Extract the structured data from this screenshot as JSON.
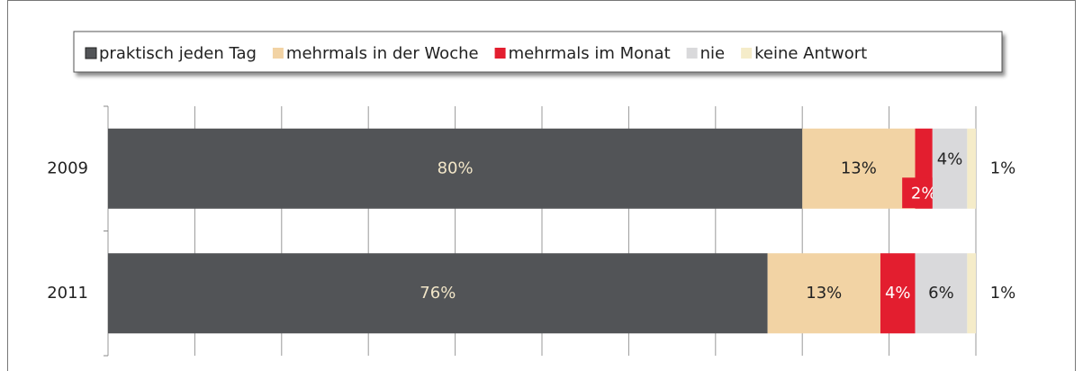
{
  "chart_data": {
    "type": "stacked-bar-horizontal",
    "categories": [
      "2009",
      "2011"
    ],
    "series": [
      {
        "name": "praktisch jeden Tag",
        "color": "#525457",
        "values": [
          80,
          76
        ],
        "value_labels": [
          "80%",
          "76%"
        ]
      },
      {
        "name": "mehrmals in der Woche",
        "color": "#f2d3a4",
        "values": [
          13,
          13
        ],
        "value_labels": [
          "13%",
          "13%"
        ]
      },
      {
        "name": "mehrmals im Monat",
        "color": "#e31e2f",
        "values": [
          2,
          4
        ],
        "value_labels": [
          "2%",
          "4%"
        ]
      },
      {
        "name": "nie",
        "color": "#d9d9db",
        "values": [
          4,
          6
        ],
        "value_labels": [
          "4%",
          "6%"
        ]
      },
      {
        "name": "keine Antwort",
        "color": "#f5ecc9",
        "values": [
          1,
          1
        ],
        "value_labels": [
          "1%",
          "1%"
        ]
      }
    ],
    "xlim": [
      0,
      100
    ],
    "xticks": [
      0,
      10,
      20,
      30,
      40,
      50,
      60,
      70,
      80,
      90,
      100
    ],
    "grid": true,
    "legend": "top"
  }
}
